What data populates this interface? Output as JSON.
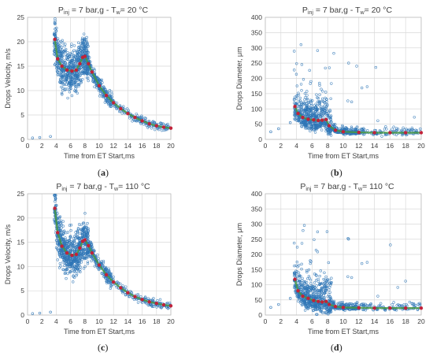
{
  "chart_data": [
    {
      "type": "scatter",
      "title": {
        "pre": "P",
        "sub": "inj",
        "post": " = 7 bar,g - T",
        "sub2": "w",
        "post2": "= 20 °C"
      },
      "xlabel": "Time from ET Start,ms",
      "ylabel": "Drops Velocity, m/s",
      "xlim": [
        0,
        20
      ],
      "ylim": [
        0,
        25
      ],
      "xticks": [
        "0",
        "2",
        "4",
        "6",
        "8",
        "10",
        "12",
        "14",
        "16",
        "18",
        "20"
      ],
      "yticks": [
        "0",
        "5",
        "10",
        "15",
        "20",
        "25"
      ],
      "grid": true,
      "caption": "a",
      "scatter_color": "#2e75b6",
      "series": [
        {
          "name": "",
          "color": "#c0233a",
          "x": [
            3.8,
            4.2,
            4.8,
            5.5,
            6.2,
            6.8,
            7.3,
            7.7,
            8.0,
            8.5,
            9,
            10,
            11,
            12,
            13,
            14,
            15,
            16,
            17,
            18,
            19,
            20
          ],
          "y": [
            20.5,
            16.5,
            15.0,
            14.2,
            14.0,
            14.2,
            15.5,
            16.8,
            17.0,
            15.5,
            13.8,
            11.0,
            9.0,
            7.5,
            6.3,
            5.3,
            4.5,
            3.8,
            3.2,
            2.8,
            2.5,
            2.3
          ]
        }
      ]
    },
    {
      "type": "scatter",
      "title": {
        "pre": "P",
        "sub": "inj",
        "post": " = 7 bar,g - T",
        "sub2": "w",
        "post2": "= 20 °C"
      },
      "xlabel": "Time from ET Start,ms",
      "ylabel": "Drops Diameter, μm",
      "xlim": [
        0,
        20
      ],
      "ylim": [
        0,
        400
      ],
      "xticks": [
        "0",
        "2",
        "4",
        "6",
        "8",
        "10",
        "12",
        "14",
        "16",
        "18",
        "20"
      ],
      "yticks": [
        "0",
        "50",
        "100",
        "150",
        "200",
        "250",
        "300",
        "350",
        "400"
      ],
      "grid": true,
      "caption": "b",
      "scatter_color": "#2e75b6",
      "series": [
        {
          "name": "",
          "color": "#c0233a",
          "x": [
            3.8,
            4.2,
            4.8,
            5.5,
            6.2,
            6.8,
            7.3,
            7.8,
            8.2,
            9,
            10,
            12,
            14,
            16,
            18,
            20
          ],
          "y": [
            108,
            85,
            72,
            66,
            64,
            62,
            63,
            65,
            45,
            30,
            25,
            23,
            22,
            22,
            22,
            22
          ]
        }
      ]
    },
    {
      "type": "scatter",
      "title": {
        "pre": "P",
        "sub": "inj",
        "post": " = 7 bar,g - T",
        "sub2": "w",
        "post2": "= 110 °C"
      },
      "xlabel": "Time from ET Start,ms",
      "ylabel": "Drops Velocity, m/s",
      "xlim": [
        0,
        20
      ],
      "ylim": [
        0,
        25
      ],
      "xticks": [
        "0",
        "2",
        "4",
        "6",
        "8",
        "10",
        "12",
        "14",
        "16",
        "18",
        "20"
      ],
      "yticks": [
        "0",
        "5",
        "10",
        "15",
        "20",
        "25"
      ],
      "grid": true,
      "caption": "c",
      "scatter_color": "#2e75b6",
      "series": [
        {
          "name": "",
          "color": "#c0233a",
          "x": [
            3.8,
            4.2,
            4.8,
            5.5,
            6.2,
            6.8,
            7.3,
            7.7,
            8.0,
            8.5,
            9,
            10,
            11,
            12,
            13,
            14,
            15,
            16,
            17,
            18,
            19,
            20
          ],
          "y": [
            22.0,
            17.0,
            14.2,
            12.8,
            12.3,
            12.5,
            13.8,
            15.2,
            15.5,
            14.3,
            12.8,
            10.3,
            8.3,
            6.8,
            5.6,
            4.6,
            3.8,
            3.2,
            2.7,
            2.4,
            2.1,
            1.9
          ]
        }
      ]
    },
    {
      "type": "scatter",
      "title": {
        "pre": "P",
        "sub": "inj",
        "post": " = 7 bar,g - T",
        "sub2": "w",
        "post2": "= 110 °C"
      },
      "xlabel": "Time from ET Start,ms",
      "ylabel": "Drops Diameter, μm",
      "xlim": [
        0,
        20
      ],
      "ylim": [
        0,
        400
      ],
      "xticks": [
        "0",
        "2",
        "4",
        "6",
        "8",
        "10",
        "12",
        "14",
        "16",
        "18",
        "20"
      ],
      "yticks": [
        "0",
        "50",
        "100",
        "150",
        "200",
        "250",
        "300",
        "350",
        "400"
      ],
      "grid": true,
      "caption": "d",
      "scatter_color": "#2e75b6",
      "series": [
        {
          "name": "",
          "color": "#c0233a",
          "x": [
            3.8,
            4.2,
            4.8,
            5.5,
            6.2,
            6.8,
            7.3,
            7.8,
            8.2,
            9,
            10,
            12,
            14,
            16,
            18,
            20
          ],
          "y": [
            118,
            80,
            62,
            55,
            48,
            45,
            43,
            45,
            35,
            28,
            25,
            24,
            23,
            23,
            23,
            23
          ]
        }
      ]
    }
  ]
}
